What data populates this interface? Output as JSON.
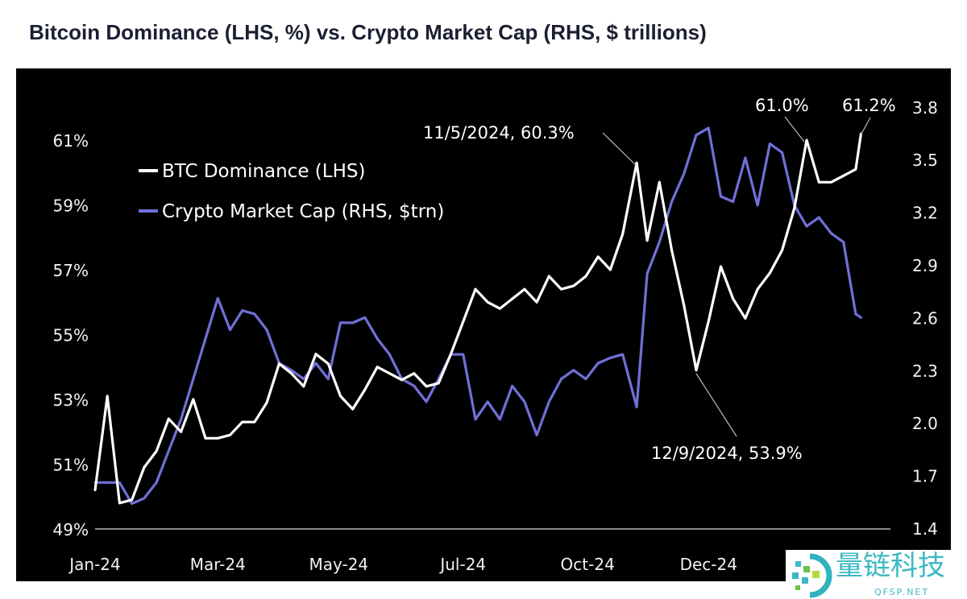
{
  "chart_data": {
    "type": "line",
    "title": "Bitcoin Dominance (LHS, %) vs. Crypto Market Cap (RHS, $ trillions)",
    "x": [
      "2024-01-01",
      "2024-01-08",
      "2024-01-15",
      "2024-01-22",
      "2024-01-29",
      "2024-02-05",
      "2024-02-12",
      "2024-02-19",
      "2024-02-26",
      "2024-03-04",
      "2024-03-11",
      "2024-03-18",
      "2024-03-25",
      "2024-04-01",
      "2024-04-08",
      "2024-04-15",
      "2024-04-22",
      "2024-04-29",
      "2024-05-06",
      "2024-05-13",
      "2024-05-20",
      "2024-05-27",
      "2024-06-03",
      "2024-06-10",
      "2024-06-17",
      "2024-06-24",
      "2024-07-01",
      "2024-07-08",
      "2024-07-15",
      "2024-07-22",
      "2024-07-29",
      "2024-08-05",
      "2024-08-12",
      "2024-08-19",
      "2024-08-26",
      "2024-09-02",
      "2024-09-09",
      "2024-09-16",
      "2024-09-23",
      "2024-09-30",
      "2024-10-07",
      "2024-10-14",
      "2024-10-21",
      "2024-10-28",
      "2024-11-05",
      "2024-11-11",
      "2024-11-18",
      "2024-11-25",
      "2024-12-02",
      "2024-12-09",
      "2024-12-16",
      "2024-12-23",
      "2024-12-30",
      "2025-01-06",
      "2025-01-13",
      "2025-01-20",
      "2025-01-27",
      "2025-02-03",
      "2025-02-10",
      "2025-02-17",
      "2025-02-24",
      "2025-03-03",
      "2025-03-10",
      "2025-03-13"
    ],
    "series": [
      {
        "name": "BTC Dominance (LHS)",
        "axis": "left",
        "color": "#ffffff",
        "values": [
          50.2,
          53.1,
          49.8,
          49.9,
          50.9,
          51.4,
          52.4,
          52.0,
          53.0,
          51.8,
          51.8,
          51.9,
          52.3,
          52.3,
          52.9,
          54.1,
          53.8,
          53.4,
          54.4,
          54.1,
          53.1,
          52.7,
          53.3,
          54.0,
          53.8,
          53.6,
          53.8,
          53.4,
          53.5,
          54.4,
          55.4,
          56.4,
          56.0,
          55.8,
          56.1,
          56.4,
          56.0,
          56.8,
          56.4,
          56.5,
          56.8,
          57.4,
          57.0,
          58.1,
          60.3,
          57.9,
          59.7,
          57.6,
          55.9,
          53.9,
          55.4,
          57.1,
          56.1,
          55.5,
          56.4,
          56.9,
          57.6,
          58.9,
          61.0,
          59.7,
          59.7,
          59.9,
          60.1,
          61.2
        ]
      },
      {
        "name": "Crypto Market Cap (RHS, $trn)",
        "axis": "right",
        "color": "#7070d8",
        "values": [
          1.66,
          1.66,
          1.66,
          1.54,
          1.57,
          1.66,
          1.84,
          2.02,
          2.25,
          2.48,
          2.71,
          2.53,
          2.64,
          2.62,
          2.53,
          2.34,
          2.3,
          2.25,
          2.34,
          2.25,
          2.57,
          2.57,
          2.6,
          2.48,
          2.39,
          2.25,
          2.21,
          2.12,
          2.25,
          2.39,
          2.39,
          2.02,
          2.12,
          2.02,
          2.21,
          2.12,
          1.93,
          2.12,
          2.25,
          2.3,
          2.25,
          2.34,
          2.37,
          2.39,
          2.09,
          2.85,
          3.03,
          3.26,
          3.42,
          3.64,
          3.68,
          3.29,
          3.26,
          3.51,
          3.24,
          3.59,
          3.54,
          3.24,
          3.12,
          3.17,
          3.08,
          3.03,
          2.62,
          2.6
        ]
      }
    ],
    "y_left": {
      "range": [
        49,
        61.8
      ],
      "ticks": [
        49,
        51,
        53,
        55,
        57,
        59,
        61
      ],
      "tick_labels": [
        "49%",
        "51%",
        "53%",
        "55%",
        "57%",
        "59%",
        "61%"
      ]
    },
    "y_right": {
      "range": [
        1.4,
        3.8
      ],
      "ticks": [
        1.4,
        1.7,
        2.0,
        2.3,
        2.6,
        2.9,
        3.2,
        3.5,
        3.8
      ],
      "tick_labels": [
        "1.4",
        "1.7",
        "2.0",
        "2.3",
        "2.6",
        "2.9",
        "3.2",
        "3.5",
        "3.8"
      ]
    },
    "x_ticks": [
      {
        "date": "2024-01-01",
        "label": "Jan-24"
      },
      {
        "date": "2024-03-11",
        "label": "Mar-24"
      },
      {
        "date": "2024-05-19",
        "label": "May-24"
      },
      {
        "date": "2024-07-29",
        "label": "Jul-24"
      },
      {
        "date": "2024-10-08",
        "label": "Oct-24"
      },
      {
        "date": "2024-12-16",
        "label": "Dec-24"
      }
    ],
    "annotations": [
      {
        "text": "11/5/2024, 60.3%",
        "date": "2024-11-05",
        "value": 60.3
      },
      {
        "text": "12/9/2024, 53.9%",
        "date": "2024-12-09",
        "value": 53.9
      },
      {
        "text": "61.0%",
        "date": "2025-02-10",
        "value": 61.0
      },
      {
        "text": "61.2%",
        "date": "2025-03-13",
        "value": 61.2
      }
    ],
    "legend": {
      "placement": "top-left",
      "entries": [
        "BTC Dominance (LHS)",
        "Crypto Market Cap (RHS, $trn)"
      ]
    },
    "grid": false,
    "background": "#000000"
  },
  "watermark": {
    "name": "量链科技",
    "domain": "QFSP.NET"
  }
}
